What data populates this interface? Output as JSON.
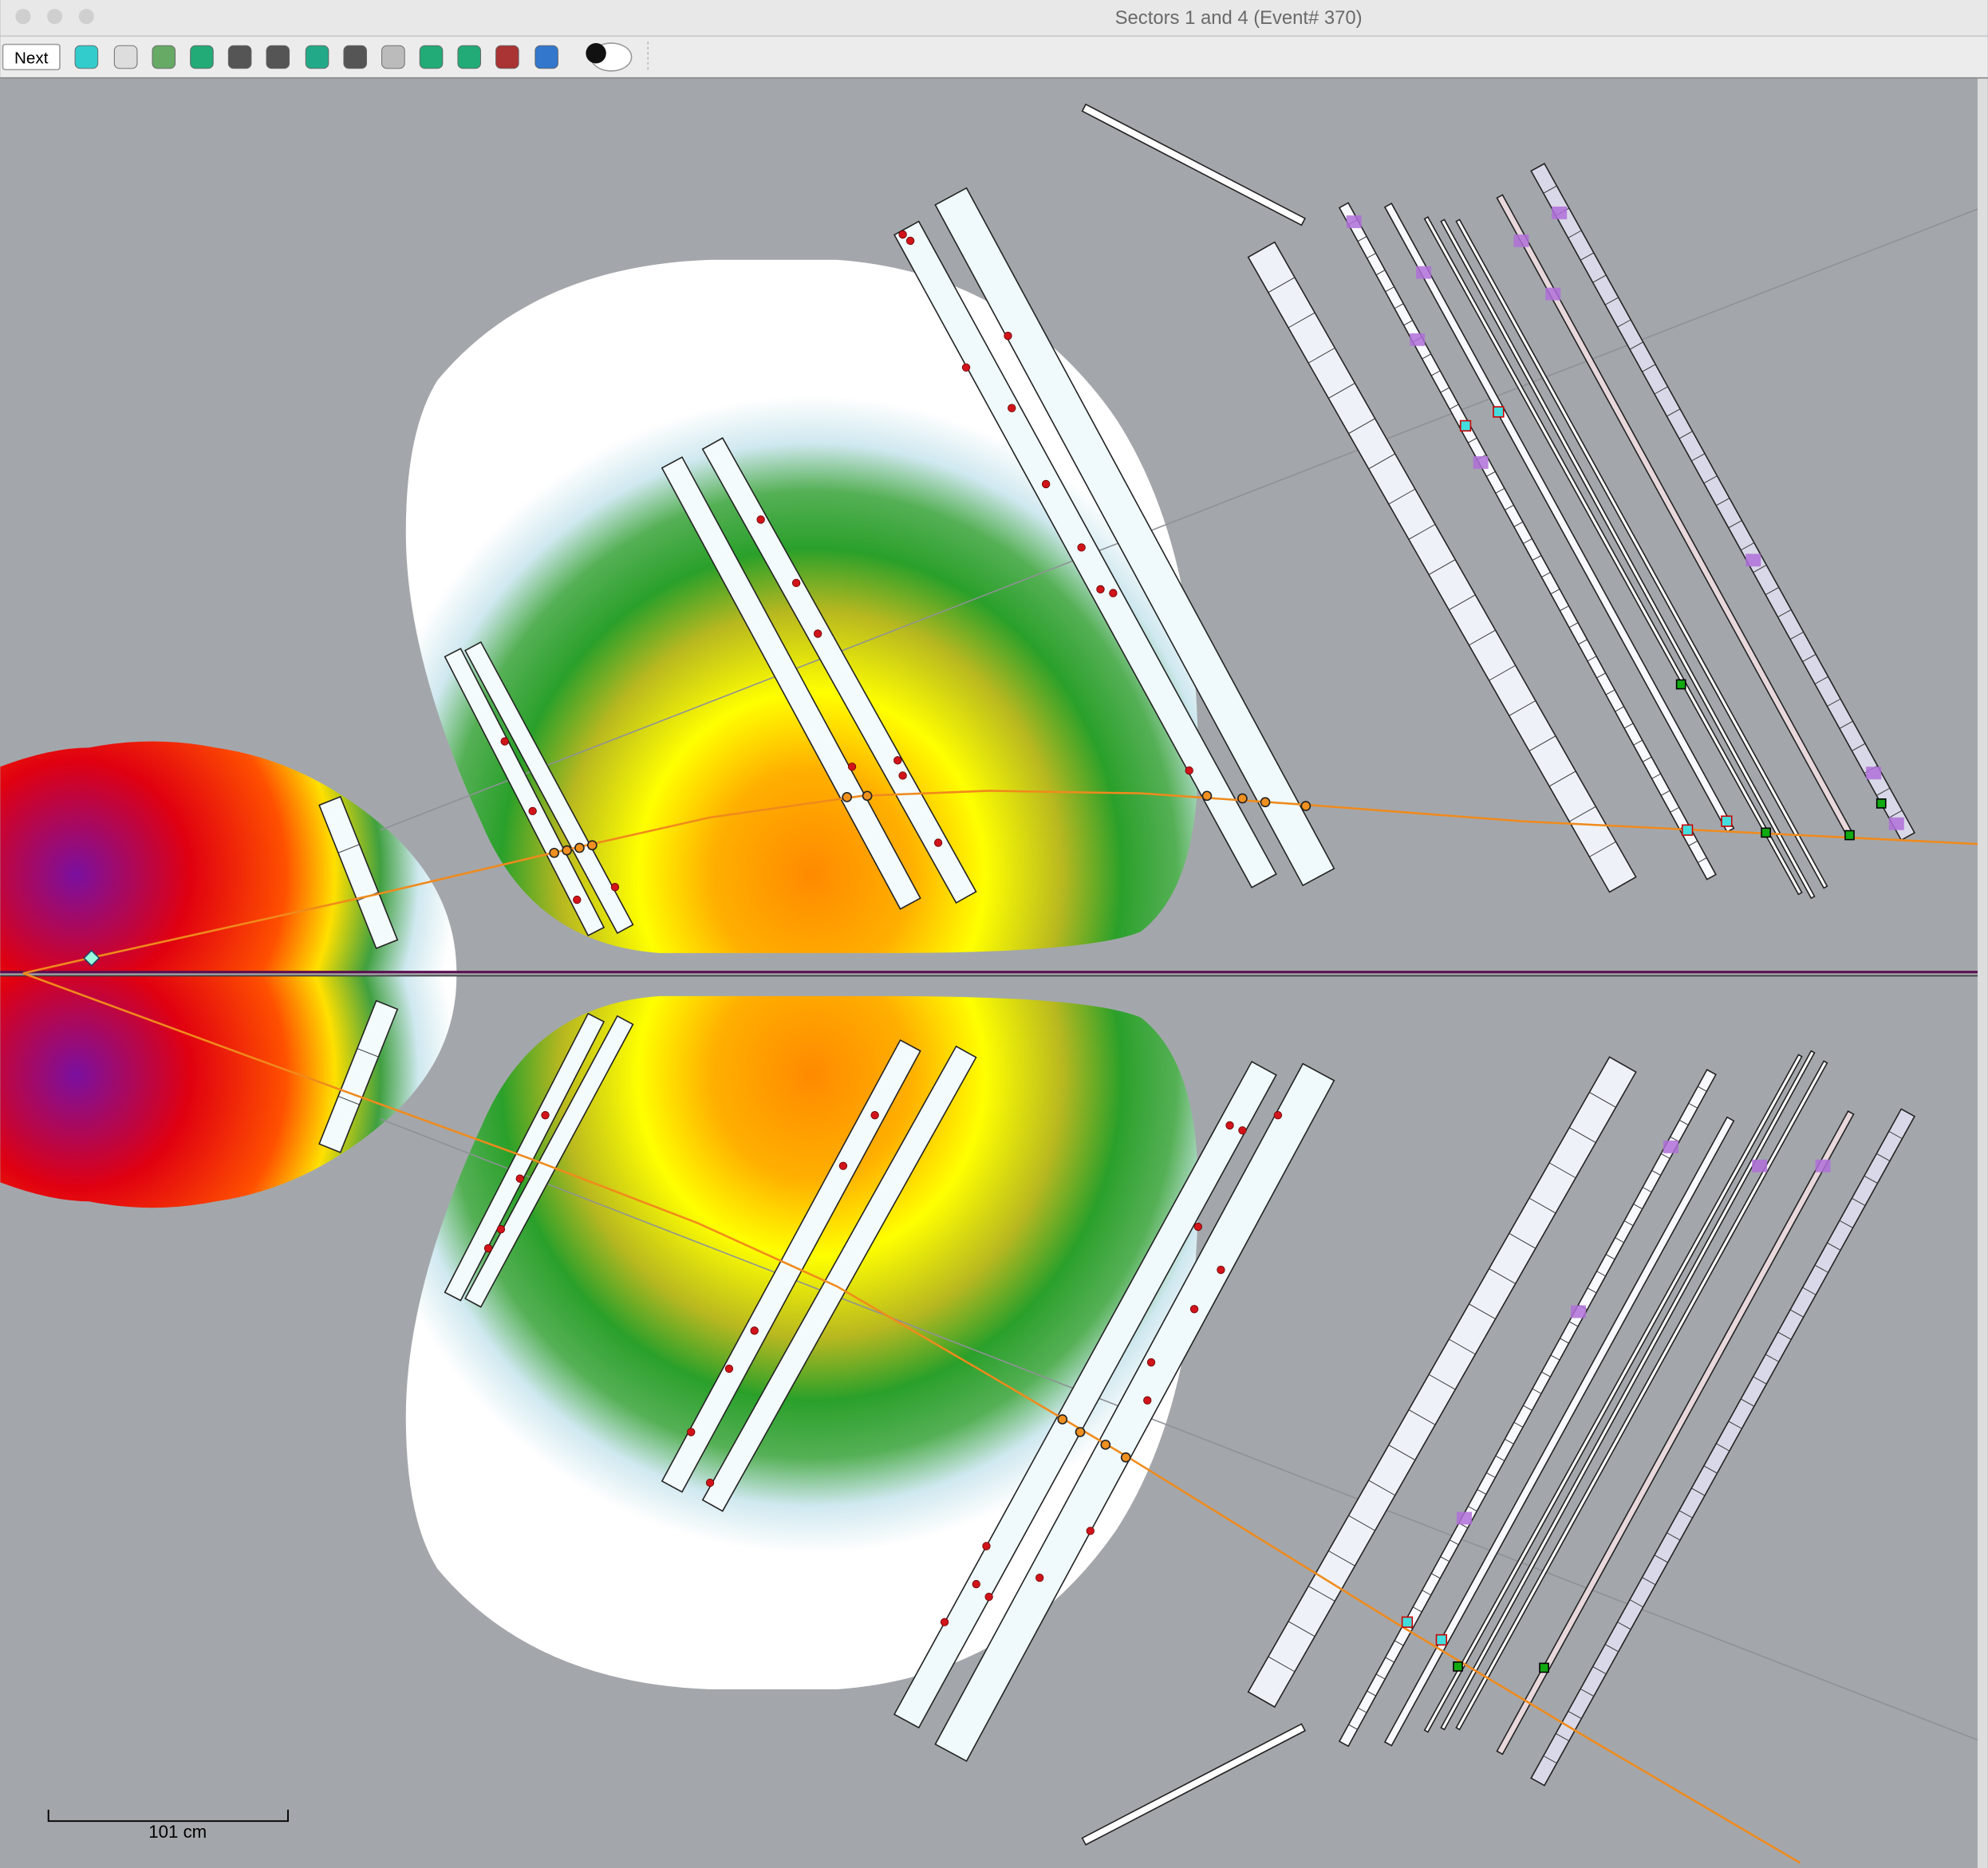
{
  "window": {
    "title": "Sectors 1 and 4  (Event# 370)"
  },
  "toolbar": {
    "next_button": "Next"
  },
  "scale_bar": {
    "label": "101 cm"
  }
}
